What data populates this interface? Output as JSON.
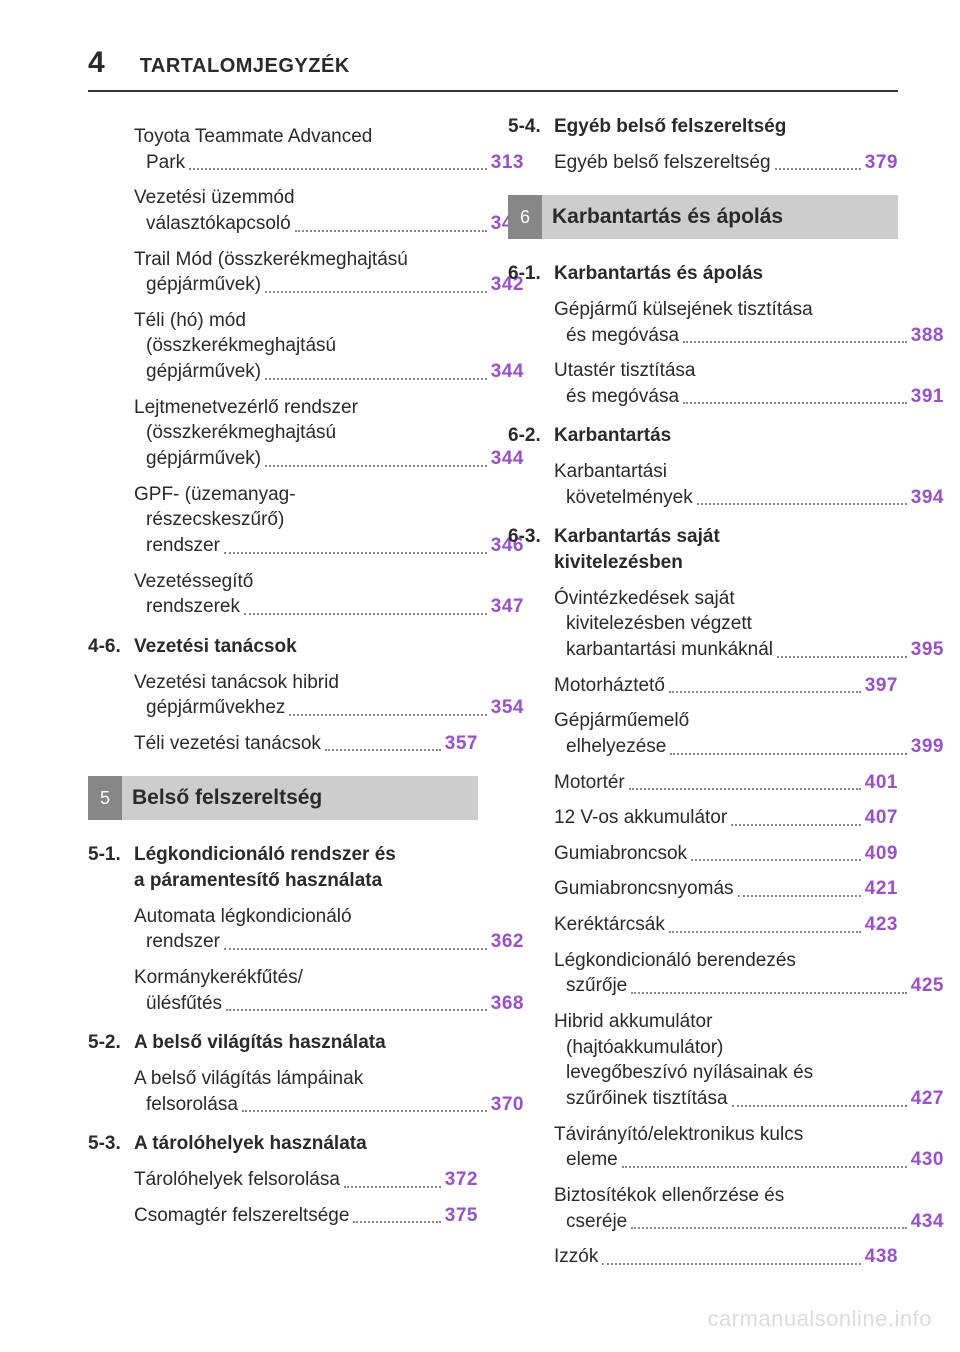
{
  "page_number": "4",
  "header_title": "TARTALOMJEGYZÉK",
  "watermark": "carmanualsonline.info",
  "colors": {
    "page_ref": "#9a4fd1",
    "section_num_bg": "#878787",
    "section_title_bg": "#cdcdcd",
    "rule": "#333333"
  },
  "left_column": {
    "cont_entries": [
      {
        "lines": [
          "Toyota Teammate Advanced",
          "Park"
        ],
        "page": "313"
      },
      {
        "lines": [
          "Vezetési üzemmód",
          "választókapcsoló"
        ],
        "page": "341"
      },
      {
        "lines": [
          "Trail Mód (összkerékmeghajtású",
          "gépjárművek)"
        ],
        "page": "342"
      },
      {
        "lines": [
          "Téli (hó) mód",
          "(összkerékmeghajtású",
          "gépjárművek)"
        ],
        "page": "344"
      },
      {
        "lines": [
          "Lejtmenetvezérlő rendszer",
          "(összkerékmeghajtású",
          "gépjárművek)"
        ],
        "page": "344"
      },
      {
        "lines": [
          "GPF- (üzemanyag-",
          "részecskeszűrő)",
          "rendszer"
        ],
        "page": "346"
      },
      {
        "lines": [
          "Vezetéssegítő",
          "rendszerek"
        ],
        "page": "347"
      }
    ],
    "sub_4_6": {
      "num": "4-6.",
      "title": "Vezetési tanácsok",
      "entries": [
        {
          "lines": [
            "Vezetési tanácsok hibrid",
            "gépjárművekhez"
          ],
          "page": "354"
        },
        {
          "lines": [
            "Téli vezetési tanácsok"
          ],
          "page": "357"
        }
      ]
    },
    "section_5": {
      "num": "5",
      "title": "Belső felszereltség"
    },
    "sub_5_1": {
      "num": "5-1.",
      "title_lines": [
        "Légkondicionáló rendszer és",
        "a páramentesítő használata"
      ],
      "entries": [
        {
          "lines": [
            "Automata légkondicionáló",
            "rendszer"
          ],
          "page": "362"
        },
        {
          "lines": [
            "Kormánykerékfűtés/",
            "ülésfűtés"
          ],
          "page": "368"
        }
      ]
    },
    "sub_5_2": {
      "num": "5-2.",
      "title": "A belső világítás használata",
      "entries": [
        {
          "lines": [
            "A belső világítás lámpáinak",
            "felsorolása"
          ],
          "page": "370"
        }
      ]
    },
    "sub_5_3": {
      "num": "5-3.",
      "title": "A tárolóhelyek használata",
      "entries": [
        {
          "lines": [
            "Tárolóhelyek felsorolása"
          ],
          "page": "372"
        },
        {
          "lines": [
            "Csomagtér felszereltsége"
          ],
          "page": "375"
        }
      ]
    }
  },
  "right_column": {
    "sub_5_4": {
      "num": "5-4.",
      "title": "Egyéb belső felszereltség",
      "entries": [
        {
          "lines": [
            "Egyéb belső felszereltség"
          ],
          "page": "379"
        }
      ]
    },
    "section_6": {
      "num": "6",
      "title": "Karbantartás és ápolás"
    },
    "sub_6_1": {
      "num": "6-1.",
      "title": "Karbantartás és ápolás",
      "entries": [
        {
          "lines": [
            "Gépjármű külsejének tisztítása",
            "és megóvása"
          ],
          "page": "388"
        },
        {
          "lines": [
            "Utastér tisztítása",
            "és megóvása"
          ],
          "page": "391"
        }
      ]
    },
    "sub_6_2": {
      "num": "6-2.",
      "title": "Karbantartás",
      "entries": [
        {
          "lines": [
            "Karbantartási",
            "követelmények"
          ],
          "page": "394"
        }
      ]
    },
    "sub_6_3": {
      "num": "6-3.",
      "title_lines": [
        "Karbantartás saját",
        "kivitelezésben"
      ],
      "entries": [
        {
          "lines": [
            "Óvintézkedések saját",
            "kivitelezésben végzett",
            "karbantartási munkáknál"
          ],
          "page": "395"
        },
        {
          "lines": [
            "Motorháztető"
          ],
          "page": "397"
        },
        {
          "lines": [
            "Gépjárműemelő",
            "elhelyezése"
          ],
          "page": "399"
        },
        {
          "lines": [
            "Motortér"
          ],
          "page": "401"
        },
        {
          "lines": [
            "12 V-os akkumulátor"
          ],
          "page": "407"
        },
        {
          "lines": [
            "Gumiabroncsok"
          ],
          "page": "409"
        },
        {
          "lines": [
            "Gumiabroncsnyomás"
          ],
          "page": "421"
        },
        {
          "lines": [
            "Keréktárcsák"
          ],
          "page": "423"
        },
        {
          "lines": [
            "Légkondicionáló berendezés",
            "szűrője"
          ],
          "page": "425"
        },
        {
          "lines": [
            "Hibrid akkumulátor",
            "(hajtóakkumulátor)",
            "levegőbeszívó nyílásainak és",
            "szűrőinek tisztítása"
          ],
          "page": "427"
        },
        {
          "lines": [
            "Távirányító/elektronikus kulcs",
            "eleme"
          ],
          "page": "430"
        },
        {
          "lines": [
            "Biztosítékok ellenőrzése és",
            "cseréje"
          ],
          "page": "434"
        },
        {
          "lines": [
            "Izzók"
          ],
          "page": "438"
        }
      ]
    }
  }
}
